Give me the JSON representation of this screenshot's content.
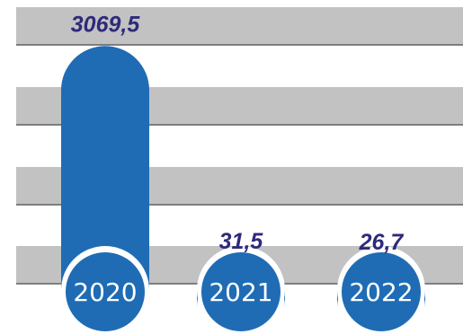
{
  "chart_data": {
    "type": "bar",
    "categories": [
      "2020",
      "2021",
      "2022"
    ],
    "values": [
      3069.5,
      31.5,
      26.7
    ],
    "value_labels": [
      "3069,5",
      "31,5",
      "26,7"
    ],
    "title": "",
    "xlabel": "",
    "ylabel": "",
    "grid": true,
    "colors": {
      "bar": "#1f6cb5",
      "value_text": "#2e2a7a",
      "band": "#c2c2c2",
      "band_line": "#5f5f5f",
      "year_text": "#ffffff"
    }
  }
}
